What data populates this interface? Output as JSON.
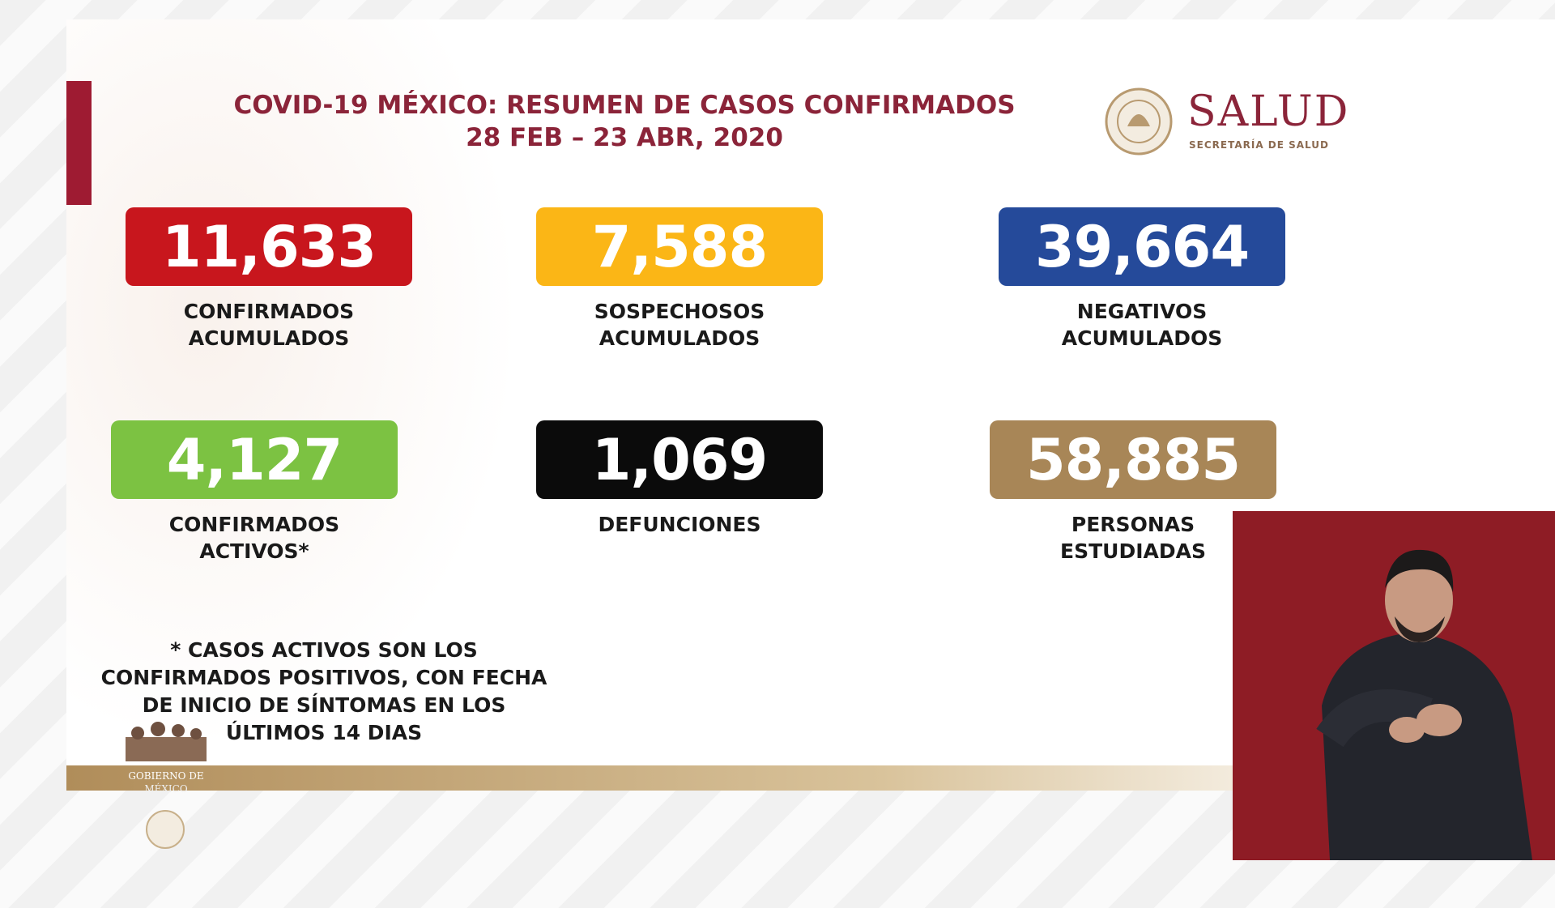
{
  "header": {
    "title": "COVID-19 MÉXICO: RESUMEN DE CASOS CONFIRMADOS",
    "subtitle": "28 FEB – 23 ABR, 2020"
  },
  "logo": {
    "name": "SALUD",
    "subtitle": "SECRETARÍA DE SALUD"
  },
  "stats": [
    {
      "value": "11,633",
      "label": [
        "CONFIRMADOS",
        "ACUMULADOS"
      ],
      "color": "#c8161d"
    },
    {
      "value": "7,588",
      "label": [
        "SOSPECHOSOS",
        "ACUMULADOS"
      ],
      "color": "#fbb616"
    },
    {
      "value": "39,664",
      "label": [
        "NEGATIVOS",
        "ACUMULADOS"
      ],
      "color": "#254a9a"
    },
    {
      "value": "4,127",
      "label": [
        "CONFIRMADOS",
        "ACTIVOS*"
      ],
      "color": "#7cc242"
    },
    {
      "value": "1,069",
      "label": [
        "DEFUNCIONES"
      ],
      "color": "#0b0b0b"
    },
    {
      "value": "58,885",
      "label": [
        "PERSONAS",
        "ESTUDIADAS"
      ],
      "color": "#a88657"
    }
  ],
  "footnote": [
    "* CASOS ACTIVOS SON LOS",
    "CONFIRMADOS POSITIVOS, CON FECHA",
    "DE INICIO DE SÍNTOMAS EN LOS",
    "ÚLTIMOS 14 DIAS"
  ],
  "footer": {
    "brand": [
      "GOBIERNO DE",
      "MÉXICO"
    ]
  }
}
